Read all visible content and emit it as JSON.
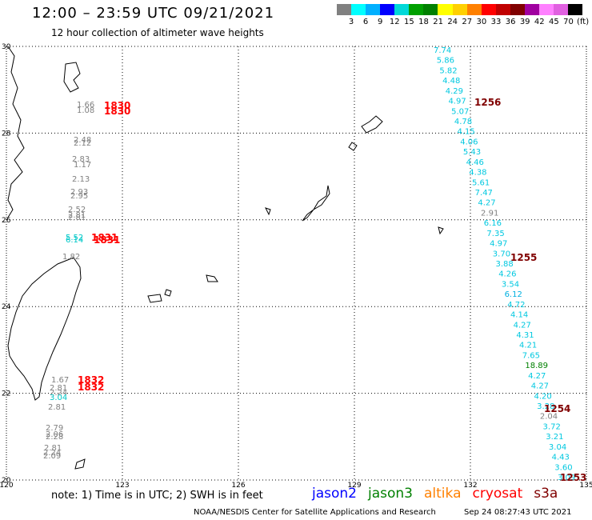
{
  "header": {
    "title": "12:00 – 23:59 UTC 09/21/2021",
    "subtitle": "12 hour collection of altimeter wave heights"
  },
  "colorbar": {
    "colors": [
      "#808080",
      "#00ffff",
      "#00b0ff",
      "#0000ff",
      "#00d8d8",
      "#00a000",
      "#008000",
      "#ffff00",
      "#ffd000",
      "#ff8000",
      "#ff0000",
      "#c00000",
      "#800000",
      "#a000a0",
      "#ff80ff",
      "#e060e0",
      "#000000"
    ],
    "labels": [
      "3",
      "6",
      "9",
      "12",
      "15",
      "18",
      "21",
      "24",
      "27",
      "30",
      "33",
      "36",
      "39",
      "42",
      "45",
      "70",
      "(ft)"
    ]
  },
  "axes": {
    "lon_labels": [
      "120",
      "123",
      "126",
      "129",
      "132",
      "135"
    ],
    "lat_labels": [
      "30",
      "28",
      "26",
      "24",
      "22",
      "20"
    ]
  },
  "tracks": [
    {
      "name": "1830",
      "color": "#ff0000",
      "label_rows": [
        0,
        1
      ],
      "labels": [
        "1830",
        "1830"
      ]
    },
    {
      "name": "1831",
      "color": "#ff0000",
      "labels": [
        "1831",
        "1831"
      ]
    },
    {
      "name": "1832",
      "color": "#ff0000",
      "labels": [
        "1832",
        "1832"
      ]
    },
    {
      "name": "1256",
      "color": "#800000",
      "labels": [
        "1256"
      ]
    },
    {
      "name": "1255",
      "color": "#800000",
      "labels": [
        "1255"
      ]
    },
    {
      "name": "1254",
      "color": "#800000",
      "labels": [
        "1254"
      ]
    },
    {
      "name": "1253",
      "color": "#800000",
      "labels": [
        "1253"
      ]
    }
  ],
  "observations_s3a": [
    {
      "v": "1.66",
      "color": "#808080"
    },
    {
      "v": "1.08",
      "color": "#808080"
    },
    {
      "v": "2.48",
      "color": "#808080"
    },
    {
      "v": "2.12",
      "color": "#808080"
    },
    {
      "v": "2.83",
      "color": "#808080"
    },
    {
      "v": "1.17",
      "color": "#808080"
    },
    {
      "v": "2.13",
      "color": "#808080"
    },
    {
      "v": "2.93",
      "color": "#808080"
    },
    {
      "v": "2.95",
      "color": "#808080"
    },
    {
      "v": "2.52",
      "color": "#808080"
    },
    {
      "v": "2.81",
      "color": "#808080"
    },
    {
      "v": "2.81",
      "color": "#808080"
    },
    {
      "v": "5.52",
      "color": "#00c8c8"
    },
    {
      "v": "6.14",
      "color": "#00c8c8"
    },
    {
      "v": "1.82",
      "color": "#808080"
    },
    {
      "v": "1.67",
      "color": "#808080"
    },
    {
      "v": "2.81",
      "color": "#808080"
    },
    {
      "v": "2.24",
      "color": "#808080"
    },
    {
      "v": "3.04",
      "color": "#00c8c8"
    },
    {
      "v": "2.81",
      "color": "#808080"
    },
    {
      "v": "2.79",
      "color": "#808080"
    },
    {
      "v": "2.06",
      "color": "#808080"
    },
    {
      "v": "2.28",
      "color": "#808080"
    },
    {
      "v": "2.81",
      "color": "#808080"
    },
    {
      "v": "2.24",
      "color": "#808080"
    },
    {
      "v": "2.09",
      "color": "#808080"
    }
  ],
  "observations_jason3": [
    {
      "v": "7.74",
      "color": "#00c8e0"
    },
    {
      "v": "5.86",
      "color": "#00c8e0"
    },
    {
      "v": "5.82",
      "color": "#00c8e0"
    },
    {
      "v": "4.48",
      "color": "#00c8e0"
    },
    {
      "v": "4.29",
      "color": "#00c8e0"
    },
    {
      "v": "4.97",
      "color": "#00c8e0"
    },
    {
      "v": "5.07",
      "color": "#00c8e0"
    },
    {
      "v": "4.78",
      "color": "#00c8e0"
    },
    {
      "v": "4.15",
      "color": "#00c8e0"
    },
    {
      "v": "4.06",
      "color": "#00c8e0"
    },
    {
      "v": "5.43",
      "color": "#00c8e0"
    },
    {
      "v": "4.46",
      "color": "#00c8e0"
    },
    {
      "v": "4.38",
      "color": "#00c8e0"
    },
    {
      "v": "5.61",
      "color": "#00c8e0"
    },
    {
      "v": "7.47",
      "color": "#00c8e0"
    },
    {
      "v": "4.27",
      "color": "#00c8e0"
    },
    {
      "v": "2.91",
      "color": "#808080"
    },
    {
      "v": "6.16",
      "color": "#00c8e0"
    },
    {
      "v": "7.35",
      "color": "#00c8e0"
    },
    {
      "v": "4.97",
      "color": "#00c8e0"
    },
    {
      "v": "3.70",
      "color": "#00c8e0"
    },
    {
      "v": "3.88",
      "color": "#00c8e0"
    },
    {
      "v": "4.26",
      "color": "#00c8e0"
    },
    {
      "v": "3.54",
      "color": "#00c8e0"
    },
    {
      "v": "6.12",
      "color": "#00b0e0"
    },
    {
      "v": "4.72",
      "color": "#00c8e0"
    },
    {
      "v": "4.14",
      "color": "#00c8e0"
    },
    {
      "v": "4.27",
      "color": "#00c8e0"
    },
    {
      "v": "4.31",
      "color": "#00c8e0"
    },
    {
      "v": "4.21",
      "color": "#00c8e0"
    },
    {
      "v": "7.65",
      "color": "#00c8e0"
    },
    {
      "v": "18.89",
      "color": "#008000"
    },
    {
      "v": "4.27",
      "color": "#00c8e0"
    },
    {
      "v": "4.27",
      "color": "#00c8e0"
    },
    {
      "v": "4.20",
      "color": "#00c8e0"
    },
    {
      "v": "3.28",
      "color": "#00c8e0"
    },
    {
      "v": "2.04",
      "color": "#808080"
    },
    {
      "v": "3.72",
      "color": "#00c8e0"
    },
    {
      "v": "3.21",
      "color": "#00c8e0"
    },
    {
      "v": "3.04",
      "color": "#00c8e0"
    },
    {
      "v": "4.43",
      "color": "#00c8e0"
    },
    {
      "v": "3.60",
      "color": "#00c8e0"
    },
    {
      "v": "3.09",
      "color": "#00c8e0"
    }
  ],
  "footer": {
    "note": "note: 1) Time is in UTC; 2) SWH is in feet",
    "legend": [
      {
        "name": "jason2",
        "color": "#0000ff"
      },
      {
        "name": "jason3",
        "color": "#008000"
      },
      {
        "name": "altika",
        "color": "#ff8000"
      },
      {
        "name": "cryosat",
        "color": "#ff0000"
      },
      {
        "name": "s3a",
        "color": "#800000"
      }
    ],
    "credit": "NOAA/NESDIS Center for Satellite Applications and Research",
    "timestamp": "Sep 24 08:27:43 UTC 2021"
  }
}
